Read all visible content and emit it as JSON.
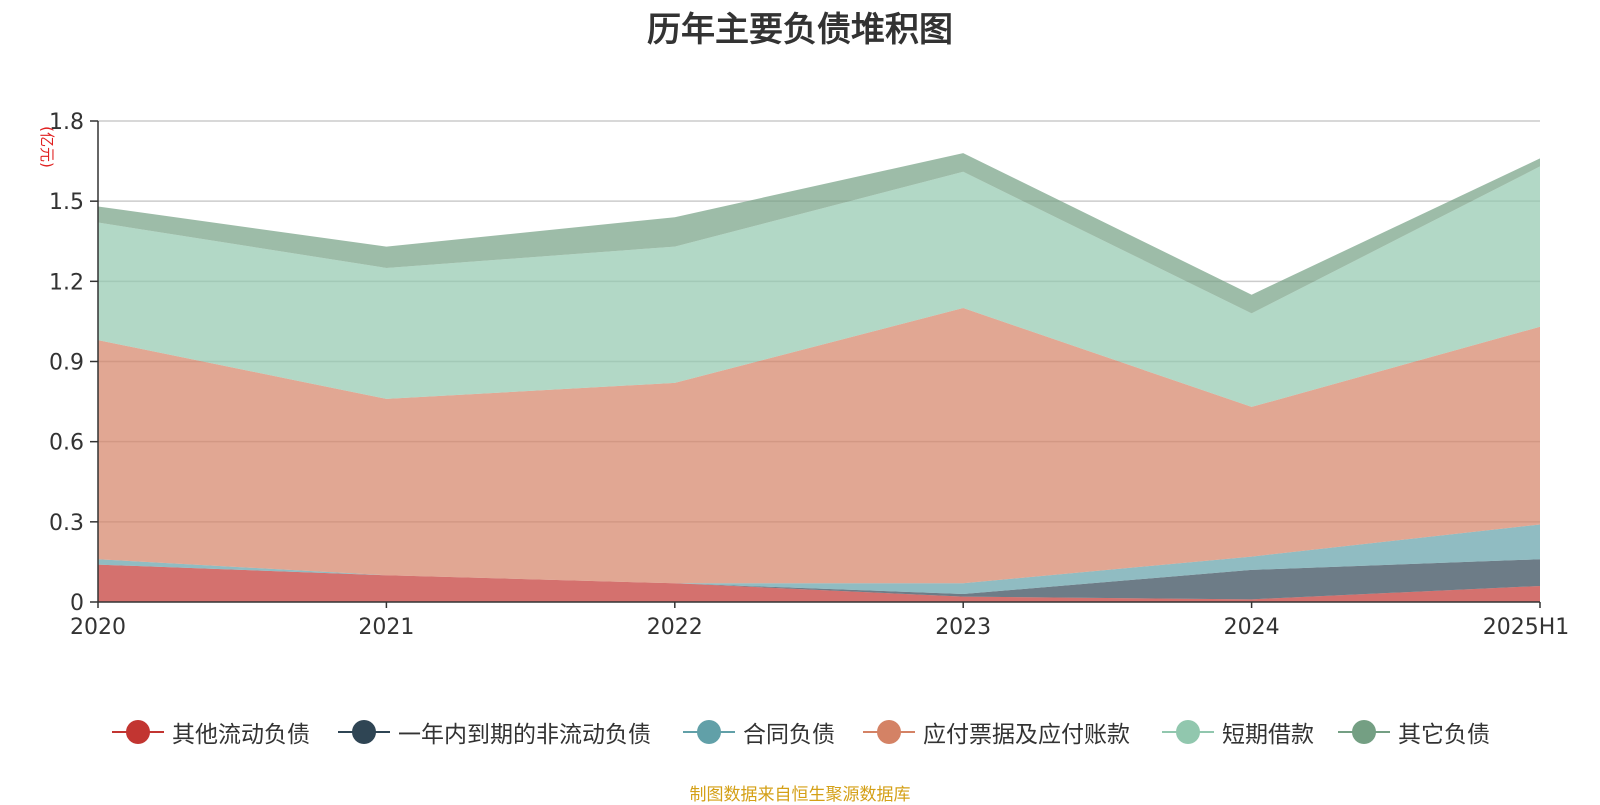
{
  "chart_data": {
    "type": "area",
    "stacked": true,
    "title": "历年主要负债堆积图",
    "unit_label": "(亿元)",
    "x": [
      "2020",
      "2021",
      "2022",
      "2023",
      "2024",
      "2025H1"
    ],
    "ylim": [
      0,
      1.8
    ],
    "yticks": [
      "0",
      "0.3",
      "0.6",
      "0.9",
      "1.2",
      "1.5",
      "1.8"
    ],
    "grid": true,
    "legend_position": "bottom",
    "series": [
      {
        "name": "其他流动负债",
        "color": "#c23531",
        "values": [
          0.14,
          0.1,
          0.07,
          0.02,
          0.01,
          0.06
        ]
      },
      {
        "name": "一年内到期的非流动负债",
        "color": "#2f4554",
        "values": [
          0.0,
          0.0,
          0.0,
          0.01,
          0.11,
          0.1
        ]
      },
      {
        "name": "合同负债",
        "color": "#61a0a8",
        "values": [
          0.02,
          0.0,
          0.0,
          0.04,
          0.05,
          0.13
        ]
      },
      {
        "name": "应付票据及应付账款",
        "color": "#d48265",
        "values": [
          0.82,
          0.66,
          0.75,
          1.03,
          0.56,
          0.74
        ]
      },
      {
        "name": "短期借款",
        "color": "#91c7ae",
        "values": [
          0.44,
          0.49,
          0.51,
          0.51,
          0.35,
          0.6
        ]
      },
      {
        "name": "其它负债",
        "color": "#749f83",
        "values": [
          0.06,
          0.08,
          0.11,
          0.07,
          0.07,
          0.03
        ]
      }
    ]
  },
  "source_text": "制图数据来自恒生聚源数据库",
  "source_color": "#d4a017"
}
